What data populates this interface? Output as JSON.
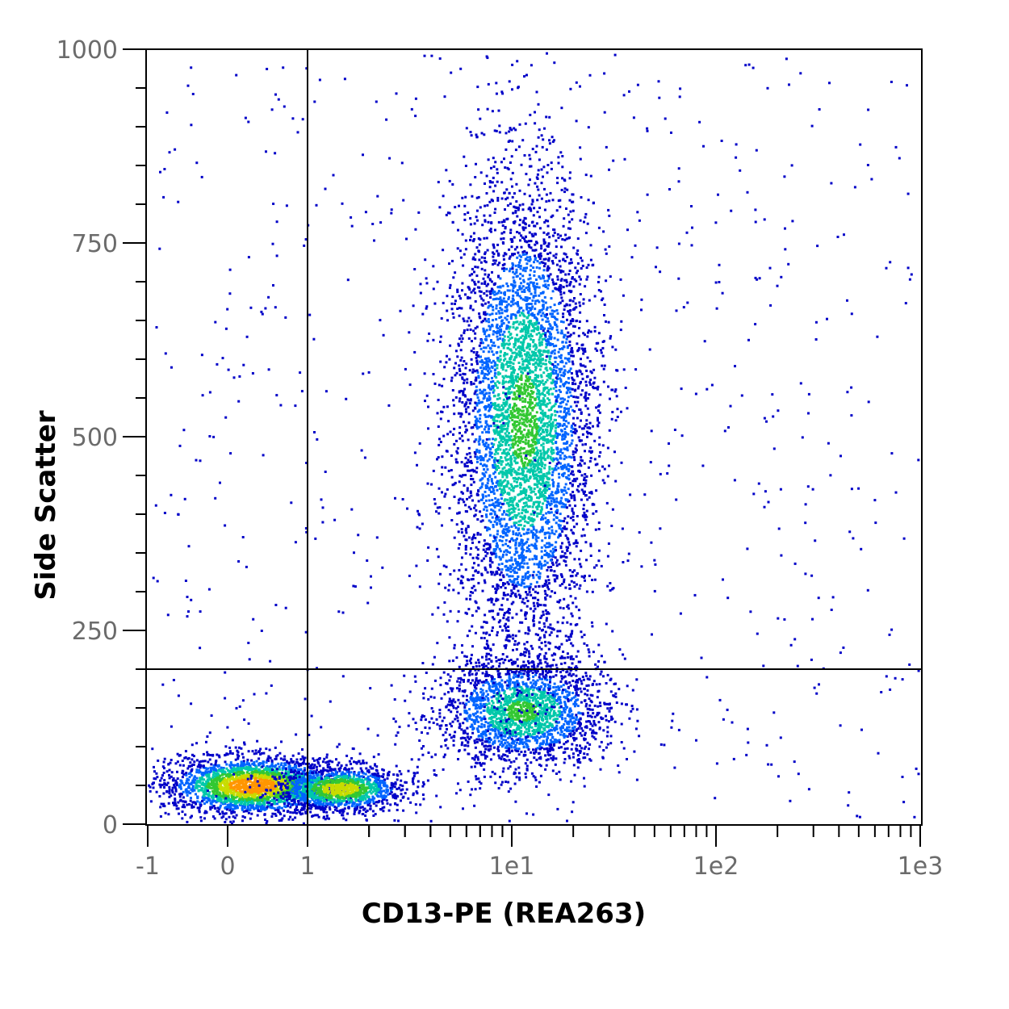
{
  "chart_data": {
    "type": "scatter",
    "subtype": "flow-cytometry-density",
    "xlabel": "CD13-PE (REA263)",
    "ylabel": "Side Scatter",
    "x_scale": "biexponential (linear near 0, log above 1)",
    "xlim": [
      -1,
      1000
    ],
    "ylim": [
      0,
      1000
    ],
    "x_ticks": [
      {
        "value": -1,
        "label": "-1"
      },
      {
        "value": 0,
        "label": "0"
      },
      {
        "value": 1,
        "label": "1"
      },
      {
        "value": 10,
        "label": "1e1"
      },
      {
        "value": 100,
        "label": "1e2"
      },
      {
        "value": 1000,
        "label": "1e3"
      }
    ],
    "y_ticks": [
      {
        "value": 0,
        "label": "0"
      },
      {
        "value": 250,
        "label": "250"
      },
      {
        "value": 500,
        "label": "500"
      },
      {
        "value": 750,
        "label": "750"
      },
      {
        "value": 1000,
        "label": "1000"
      }
    ],
    "gates": {
      "x": 1,
      "y": 200
    },
    "density_colormap": [
      "#0000c8",
      "#0064ff",
      "#00c8aa",
      "#32c832",
      "#c8dc00",
      "#ff9600",
      "#ff1e00"
    ],
    "populations": [
      {
        "center_x": 0.3,
        "center_y": 45,
        "spread_x": "-0.9 to 1",
        "spread_y": "25 to 110",
        "peak_color": "red"
      },
      {
        "center_x": 1.6,
        "center_y": 45,
        "spread_x": "1 to 3",
        "spread_y": "25 to 80",
        "peak_color": "yellow"
      },
      {
        "center_x": 13,
        "center_y": 140,
        "spread_x": "5 to 40",
        "spread_y": "80 to 200",
        "peak_color": "green"
      },
      {
        "center_x": 12,
        "center_y": 520,
        "spread_x": "6 to 28",
        "spread_y": "300 to 950",
        "peak_color": "green"
      }
    ],
    "grid": false,
    "legend": "none"
  }
}
